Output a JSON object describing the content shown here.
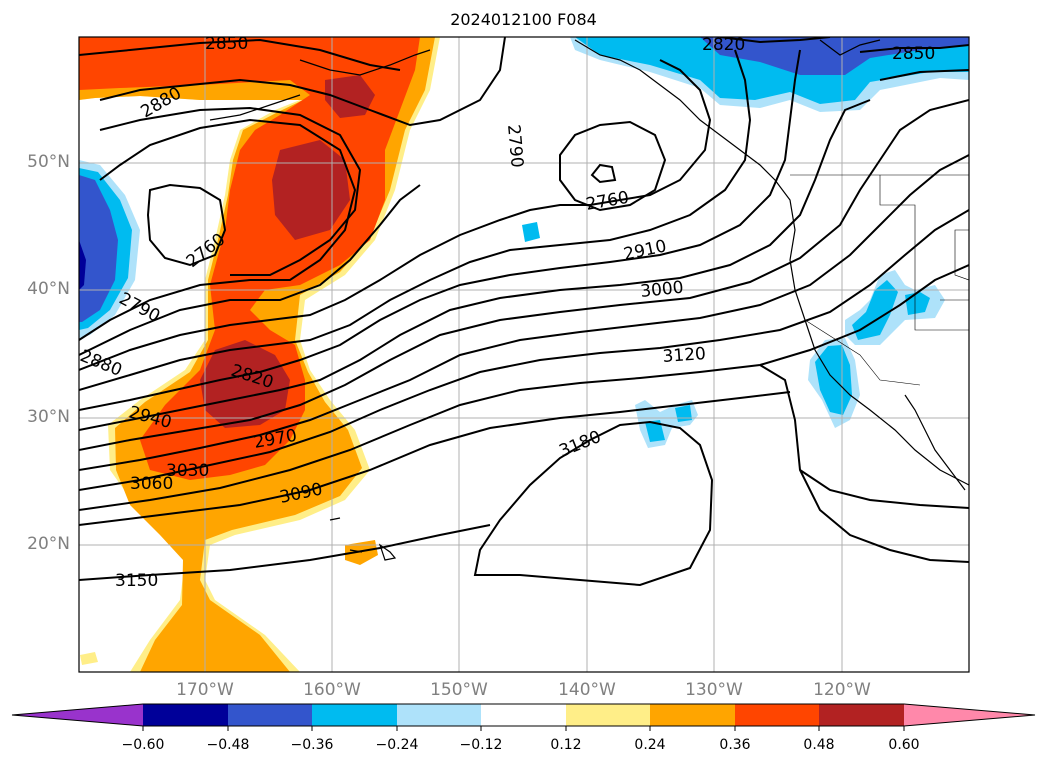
{
  "title": "2024012100 F084",
  "lat_labels": [
    "50°N",
    "40°N",
    "30°N",
    "20°N"
  ],
  "lon_labels": [
    "170°W",
    "160°W",
    "150°W",
    "140°W",
    "130°W",
    "120°W"
  ],
  "colorbar": {
    "ticks": [
      "−0.60",
      "−0.48",
      "−0.36",
      "−0.24",
      "−0.12",
      "0.12",
      "0.24",
      "0.36",
      "0.48",
      "0.60"
    ],
    "colors": [
      "#9933cc",
      "#000099",
      "#3355cc",
      "#00bbf0",
      "#aee2fa",
      "#ffffff",
      "#ffee88",
      "#ffa500",
      "#ff4500",
      "#b22222",
      "#ff88aa"
    ]
  },
  "contour_labels": [
    {
      "text": "2850",
      "name": "contour-label-2850-a"
    },
    {
      "text": "2880",
      "name": "contour-label-2880-a"
    },
    {
      "text": "2820",
      "name": "contour-label-2820-a"
    },
    {
      "text": "2850",
      "name": "contour-label-2850-b"
    },
    {
      "text": "2790",
      "name": "contour-label-2790-a"
    },
    {
      "text": "2760",
      "name": "contour-label-2760-a"
    },
    {
      "text": "2910",
      "name": "contour-label-2910"
    },
    {
      "text": "3000",
      "name": "contour-label-3000"
    },
    {
      "text": "2760",
      "name": "contour-label-2760-b"
    },
    {
      "text": "2790",
      "name": "contour-label-2790-b"
    },
    {
      "text": "2880",
      "name": "contour-label-2880-b"
    },
    {
      "text": "3120",
      "name": "contour-label-3120"
    },
    {
      "text": "2820",
      "name": "contour-label-2820-b"
    },
    {
      "text": "2940",
      "name": "contour-label-2940"
    },
    {
      "text": "3180",
      "name": "contour-label-3180"
    },
    {
      "text": "2970",
      "name": "contour-label-2970"
    },
    {
      "text": "3030",
      "name": "contour-label-3030"
    },
    {
      "text": "3060",
      "name": "contour-label-3060"
    },
    {
      "text": "3090",
      "name": "contour-label-3090"
    },
    {
      "text": "3150",
      "name": "contour-label-3150"
    }
  ]
}
